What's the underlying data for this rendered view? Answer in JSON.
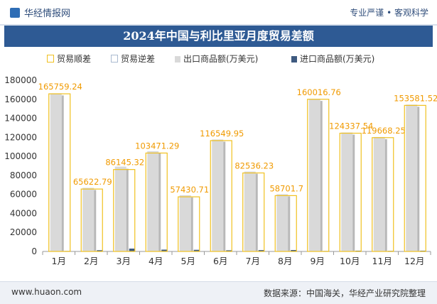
{
  "header": {
    "brand": "华经情报网",
    "slogan": "专业严谨 • 客观科学"
  },
  "footer": {
    "website": "www.huaon.com",
    "source": "数据来源：中国海关，华经产业研究院整理"
  },
  "colors": {
    "trade_surplus": "#f0c020",
    "trade_deficit": "#aabad0",
    "exports": "#d9d9d9",
    "imports": "#3e5a80",
    "title_bg": "#2e5a94",
    "data_label": "#f09a00"
  },
  "chart_data": {
    "type": "bar",
    "title": "2024年中国与利比里亚月度贸易差额",
    "categories": [
      "1月",
      "2月",
      "3月",
      "4月",
      "5月",
      "6月",
      "7月",
      "8月",
      "9月",
      "10月",
      "11月",
      "12月"
    ],
    "series": [
      {
        "name": "贸易顺差",
        "values": [
          165759.24,
          65622.79,
          86145.32,
          103471.29,
          57430.71,
          116549.95,
          82536.23,
          58701.7,
          160016.76,
          124337.54,
          119668.25,
          153581.52
        ]
      },
      {
        "name": "贸易逆差",
        "values": [
          0,
          0,
          0,
          0,
          0,
          0,
          0,
          0,
          0,
          0,
          0,
          0
        ]
      },
      {
        "name": "出口商品额(万美元)",
        "values": [
          166300,
          66900,
          89200,
          105400,
          59100,
          117700,
          84000,
          60200,
          160500,
          125100,
          120300,
          154400
        ]
      },
      {
        "name": "进口商品额(万美元)",
        "values": [
          500,
          1300,
          3000,
          1900,
          1700,
          1200,
          1400,
          1500,
          500,
          800,
          600,
          800
        ]
      }
    ],
    "data_labels": [
      "165759.24",
      "65622.79",
      "86145.32",
      "103471.29",
      "57430.71",
      "116549.95",
      "82536.23",
      "58701.7",
      "160016.76",
      "124337.54",
      "119668.25",
      "153581.52"
    ],
    "ylim": [
      0,
      180000
    ],
    "yticks": [
      "0",
      "20000",
      "40000",
      "60000",
      "80000",
      "100000",
      "120000",
      "140000",
      "160000",
      "180000"
    ],
    "grid": false,
    "legend_position": "top"
  }
}
